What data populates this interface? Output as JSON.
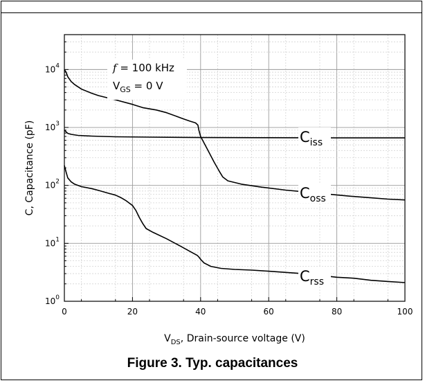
{
  "chart_data": {
    "type": "line",
    "title": "",
    "xlabel": "V_DS, Drain-source voltage (V)",
    "xlabel_main": "V",
    "xlabel_sub": "DS",
    "xlabel_rest": ", Drain-source voltage (V)",
    "ylabel": "C, Capacitance (pF)",
    "xlim": [
      0,
      100
    ],
    "ylim": [
      1,
      40000
    ],
    "yscale": "log",
    "grid": true,
    "x_ticks": [
      0,
      20,
      40,
      60,
      80,
      100
    ],
    "y_ticks": [
      {
        "base": "10",
        "exp": "0",
        "value": 1
      },
      {
        "base": "10",
        "exp": "1",
        "value": 10
      },
      {
        "base": "10",
        "exp": "2",
        "value": 100
      },
      {
        "base": "10",
        "exp": "3",
        "value": 1000
      },
      {
        "base": "10",
        "exp": "4",
        "value": 10000
      }
    ],
    "annotation": {
      "line1_italic": "f",
      "line1_rest": " = 100 kHz",
      "line2_main": "V",
      "line2_sub": "GS",
      "line2_rest": " = 0 V"
    },
    "series": [
      {
        "name": "Ciss",
        "label_main": "C",
        "label_sub": "iss",
        "x": [
          0,
          1,
          2,
          4,
          8,
          15,
          25,
          40,
          60,
          80,
          100
        ],
        "y": [
          900,
          790,
          760,
          730,
          710,
          690,
          680,
          670,
          665,
          660,
          660
        ]
      },
      {
        "name": "Coss",
        "label_main": "C",
        "label_sub": "oss",
        "x": [
          0,
          0.5,
          1,
          2,
          3,
          5,
          8,
          10,
          15,
          20,
          23,
          27,
          30,
          33,
          35,
          37,
          38.5,
          39.2,
          39.5,
          40,
          42,
          44,
          45.5,
          46.5,
          48,
          52,
          58,
          65,
          72,
          78,
          84,
          90,
          95,
          100
        ],
        "y": [
          10000,
          9000,
          7500,
          6200,
          5500,
          4600,
          3900,
          3550,
          3000,
          2500,
          2200,
          2000,
          1800,
          1550,
          1400,
          1280,
          1200,
          1100,
          900,
          700,
          420,
          250,
          175,
          140,
          120,
          105,
          93,
          83,
          76,
          70,
          65,
          61,
          58,
          56
        ]
      },
      {
        "name": "Crss",
        "label_main": "C",
        "label_sub": "rss",
        "x": [
          0,
          0.5,
          1,
          2,
          3,
          5,
          8,
          10,
          13,
          15,
          16.5,
          18,
          20,
          21,
          22,
          23,
          24,
          26,
          30,
          34,
          37,
          39,
          39.5,
          40,
          41,
          43,
          46,
          50,
          55,
          60,
          65,
          70,
          75,
          80,
          85,
          90,
          95,
          100
        ],
        "y": [
          220,
          170,
          135,
          115,
          105,
          95,
          88,
          82,
          73,
          68,
          62,
          55,
          45,
          37,
          28,
          22,
          18,
          15.5,
          12,
          9,
          7.2,
          6.2,
          5.8,
          5.3,
          4.6,
          4.0,
          3.7,
          3.55,
          3.45,
          3.3,
          3.15,
          3.0,
          2.8,
          2.6,
          2.5,
          2.3,
          2.2,
          2.1
        ]
      }
    ]
  },
  "caption": "Figure 3. Typ. capacitances"
}
